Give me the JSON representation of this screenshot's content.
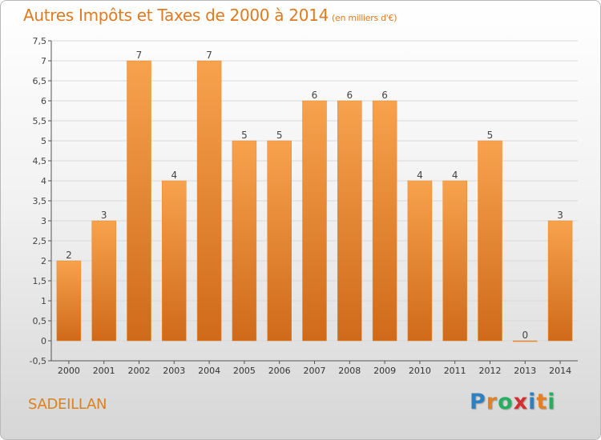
{
  "header": {
    "title": "Autres Impôts et Taxes de 2000 à 2014",
    "unit": "(en milliers d'€)"
  },
  "commune": "SADEILLAN",
  "logo": {
    "text": "Proxiti",
    "letters": [
      {
        "ch": "P",
        "color": "#2f7fc1"
      },
      {
        "ch": "r",
        "color": "#e67e22"
      },
      {
        "ch": "o",
        "color": "#27ae60"
      },
      {
        "ch": "x",
        "color": "#d62f2f"
      },
      {
        "ch": "i",
        "color": "#2f7fc1"
      },
      {
        "ch": "t",
        "color": "#e67e22"
      },
      {
        "ch": "i",
        "color": "#27ae60"
      }
    ]
  },
  "chart_data": {
    "type": "bar",
    "categories": [
      "2000",
      "2001",
      "2002",
      "2003",
      "2004",
      "2005",
      "2006",
      "2007",
      "2008",
      "2009",
      "2010",
      "2011",
      "2012",
      "2013",
      "2014"
    ],
    "values": [
      2,
      3,
      7,
      4,
      7,
      5,
      5,
      6,
      6,
      6,
      4,
      4,
      5,
      0,
      3
    ],
    "data_labels": [
      "2",
      "3",
      "7",
      "4",
      "7",
      "5",
      "5",
      "6",
      "6",
      "6",
      "4",
      "4",
      "5",
      "0",
      "3"
    ],
    "yticks": [
      "-0,5",
      "0",
      "0,5",
      "1",
      "1,5",
      "2",
      "2,5",
      "3",
      "3,5",
      "4",
      "4,5",
      "5",
      "5,5",
      "6",
      "6,5",
      "7",
      "7,5"
    ],
    "ylim": [
      -0.5,
      7.5
    ],
    "grid": true,
    "bar_color_top": "#f7a24e",
    "bar_color_bottom": "#cf6a1a"
  }
}
